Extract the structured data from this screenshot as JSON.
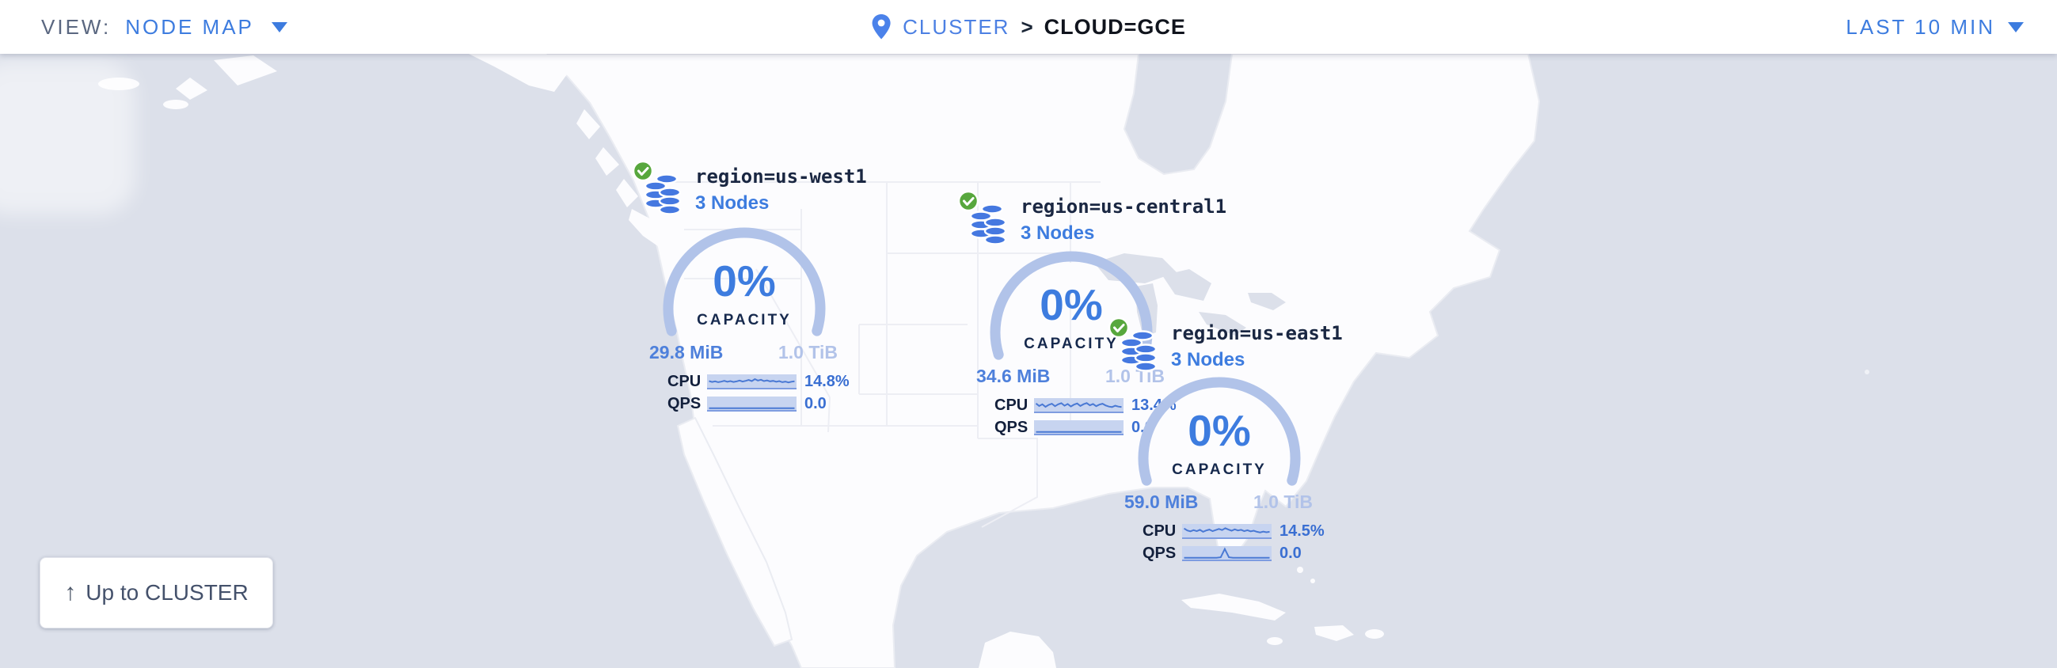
{
  "header": {
    "view_label": "VIEW:",
    "view_value": "NODE MAP",
    "view_dropdown_icon": "chevron-down-icon",
    "breadcrumb": {
      "pin_icon": "location-pin-icon",
      "root": "CLUSTER",
      "separator": ">",
      "current": "CLOUD=GCE"
    },
    "time_range": "LAST 10 MIN",
    "time_dropdown_icon": "chevron-down-icon"
  },
  "map": {
    "up_button_label": "Up to CLUSTER",
    "up_button_icon": "arrow-up-icon",
    "nodes": [
      {
        "label": "region=us-west1",
        "node_count": "3 Nodes",
        "status_icon": "check-circle-icon",
        "db_icon": "database-nodes-icon",
        "capacity_pct": "0%",
        "capacity_caption": "CAPACITY",
        "capacity_used": "29.8 MiB",
        "capacity_total": "1.0 TiB",
        "cpu_label": "CPU",
        "cpu_value": "14.8%",
        "qps_label": "QPS",
        "qps_value": "0.0",
        "cpu_spark": [
          0.5,
          0.42,
          0.48,
          0.4,
          0.45,
          0.52,
          0.44,
          0.5,
          0.42,
          0.47,
          0.55,
          0.46,
          0.52,
          0.6,
          0.5,
          0.68,
          0.55,
          0.62,
          0.5,
          0.56,
          0.48,
          0.52,
          0.44,
          0.5,
          0.4,
          0.46,
          0.38,
          0.44,
          0.48
        ],
        "qps_spark": [
          0.06,
          0.06,
          0.06,
          0.06,
          0.06,
          0.06,
          0.06,
          0.06,
          0.06,
          0.06,
          0.06,
          0.06,
          0.06,
          0.06,
          0.06,
          0.06,
          0.06,
          0.06,
          0.06,
          0.06
        ]
      },
      {
        "label": "region=us-central1",
        "node_count": "3 Nodes",
        "status_icon": "check-circle-icon",
        "db_icon": "database-nodes-icon",
        "capacity_pct": "0%",
        "capacity_caption": "CAPACITY",
        "capacity_used": "34.6 MiB",
        "capacity_total": "1.0 TiB",
        "cpu_label": "CPU",
        "cpu_value": "13.4%",
        "qps_label": "QPS",
        "qps_value": "0.0",
        "cpu_spark": [
          0.62,
          0.4,
          0.55,
          0.32,
          0.5,
          0.6,
          0.38,
          0.55,
          0.65,
          0.42,
          0.58,
          0.36,
          0.52,
          0.62,
          0.4,
          0.56,
          0.66,
          0.46,
          0.58,
          0.38,
          0.52,
          0.6,
          0.44,
          0.34,
          0.3,
          0.42,
          0.34,
          0.3
        ],
        "qps_spark": [
          0.06,
          0.06,
          0.06,
          0.06,
          0.06,
          0.06,
          0.06,
          0.06,
          0.06,
          0.06,
          0.06,
          0.06,
          0.06,
          0.06,
          0.06,
          0.06,
          0.06,
          0.06,
          0.06,
          0.06
        ]
      },
      {
        "label": "region=us-east1",
        "node_count": "3 Nodes",
        "status_icon": "check-circle-icon",
        "db_icon": "database-nodes-icon",
        "capacity_pct": "0%",
        "capacity_caption": "CAPACITY",
        "capacity_used": "59.0 MiB",
        "capacity_total": "1.0 TiB",
        "cpu_label": "CPU",
        "cpu_value": "14.5%",
        "qps_label": "QPS",
        "qps_value": "0.0",
        "cpu_spark": [
          0.7,
          0.52,
          0.44,
          0.55,
          0.46,
          0.58,
          0.4,
          0.52,
          0.6,
          0.46,
          0.56,
          0.66,
          0.56,
          0.72,
          0.6,
          0.5,
          0.62,
          0.52,
          0.58,
          0.46,
          0.54,
          0.44,
          0.5,
          0.4,
          0.34,
          0.42,
          0.36,
          0.4
        ],
        "qps_spark": [
          0.06,
          0.06,
          0.06,
          0.06,
          0.06,
          0.06,
          0.06,
          0.06,
          0.06,
          0.1,
          0.85,
          0.1,
          0.06,
          0.06,
          0.06,
          0.06,
          0.06,
          0.06,
          0.06,
          0.06,
          0.06,
          0.06
        ]
      }
    ]
  },
  "colors": {
    "accent_blue": "#3D7CDF",
    "arc_blue": "#B1C3E9",
    "used_blue": "#4E80DB",
    "pale_blue": "#B2C3E9",
    "navy_text": "#16294D",
    "status_green": "#57A73D",
    "ocean": "#DCE0EA",
    "land": "#FCFCFE"
  }
}
